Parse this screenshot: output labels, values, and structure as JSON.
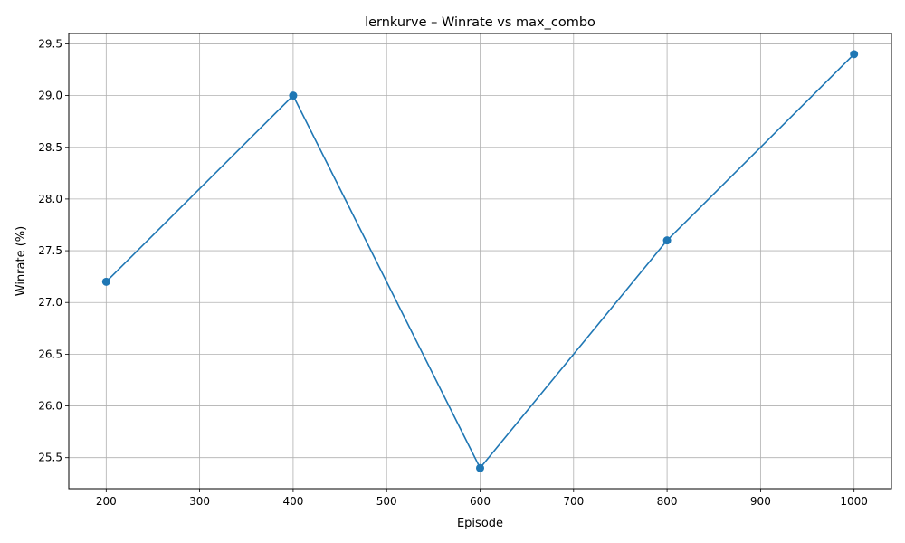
{
  "chart_data": {
    "type": "line",
    "title": "lernkurve – Winrate vs max_combo",
    "xlabel": "Episode",
    "ylabel": "Winrate (%)",
    "x": [
      200,
      400,
      600,
      800,
      1000
    ],
    "series": [
      {
        "values": [
          27.2,
          29.0,
          25.4,
          27.6,
          29.4
        ],
        "color": "#1f77b4"
      }
    ],
    "xlim": [
      160,
      1040
    ],
    "ylim": [
      25.2,
      29.6
    ],
    "xticks": [
      200,
      300,
      400,
      500,
      600,
      700,
      800,
      900,
      1000
    ],
    "yticks": [
      25.5,
      26.0,
      26.5,
      27.0,
      27.5,
      28.0,
      28.5,
      29.0,
      29.5
    ],
    "grid": true,
    "marker": "circle"
  }
}
